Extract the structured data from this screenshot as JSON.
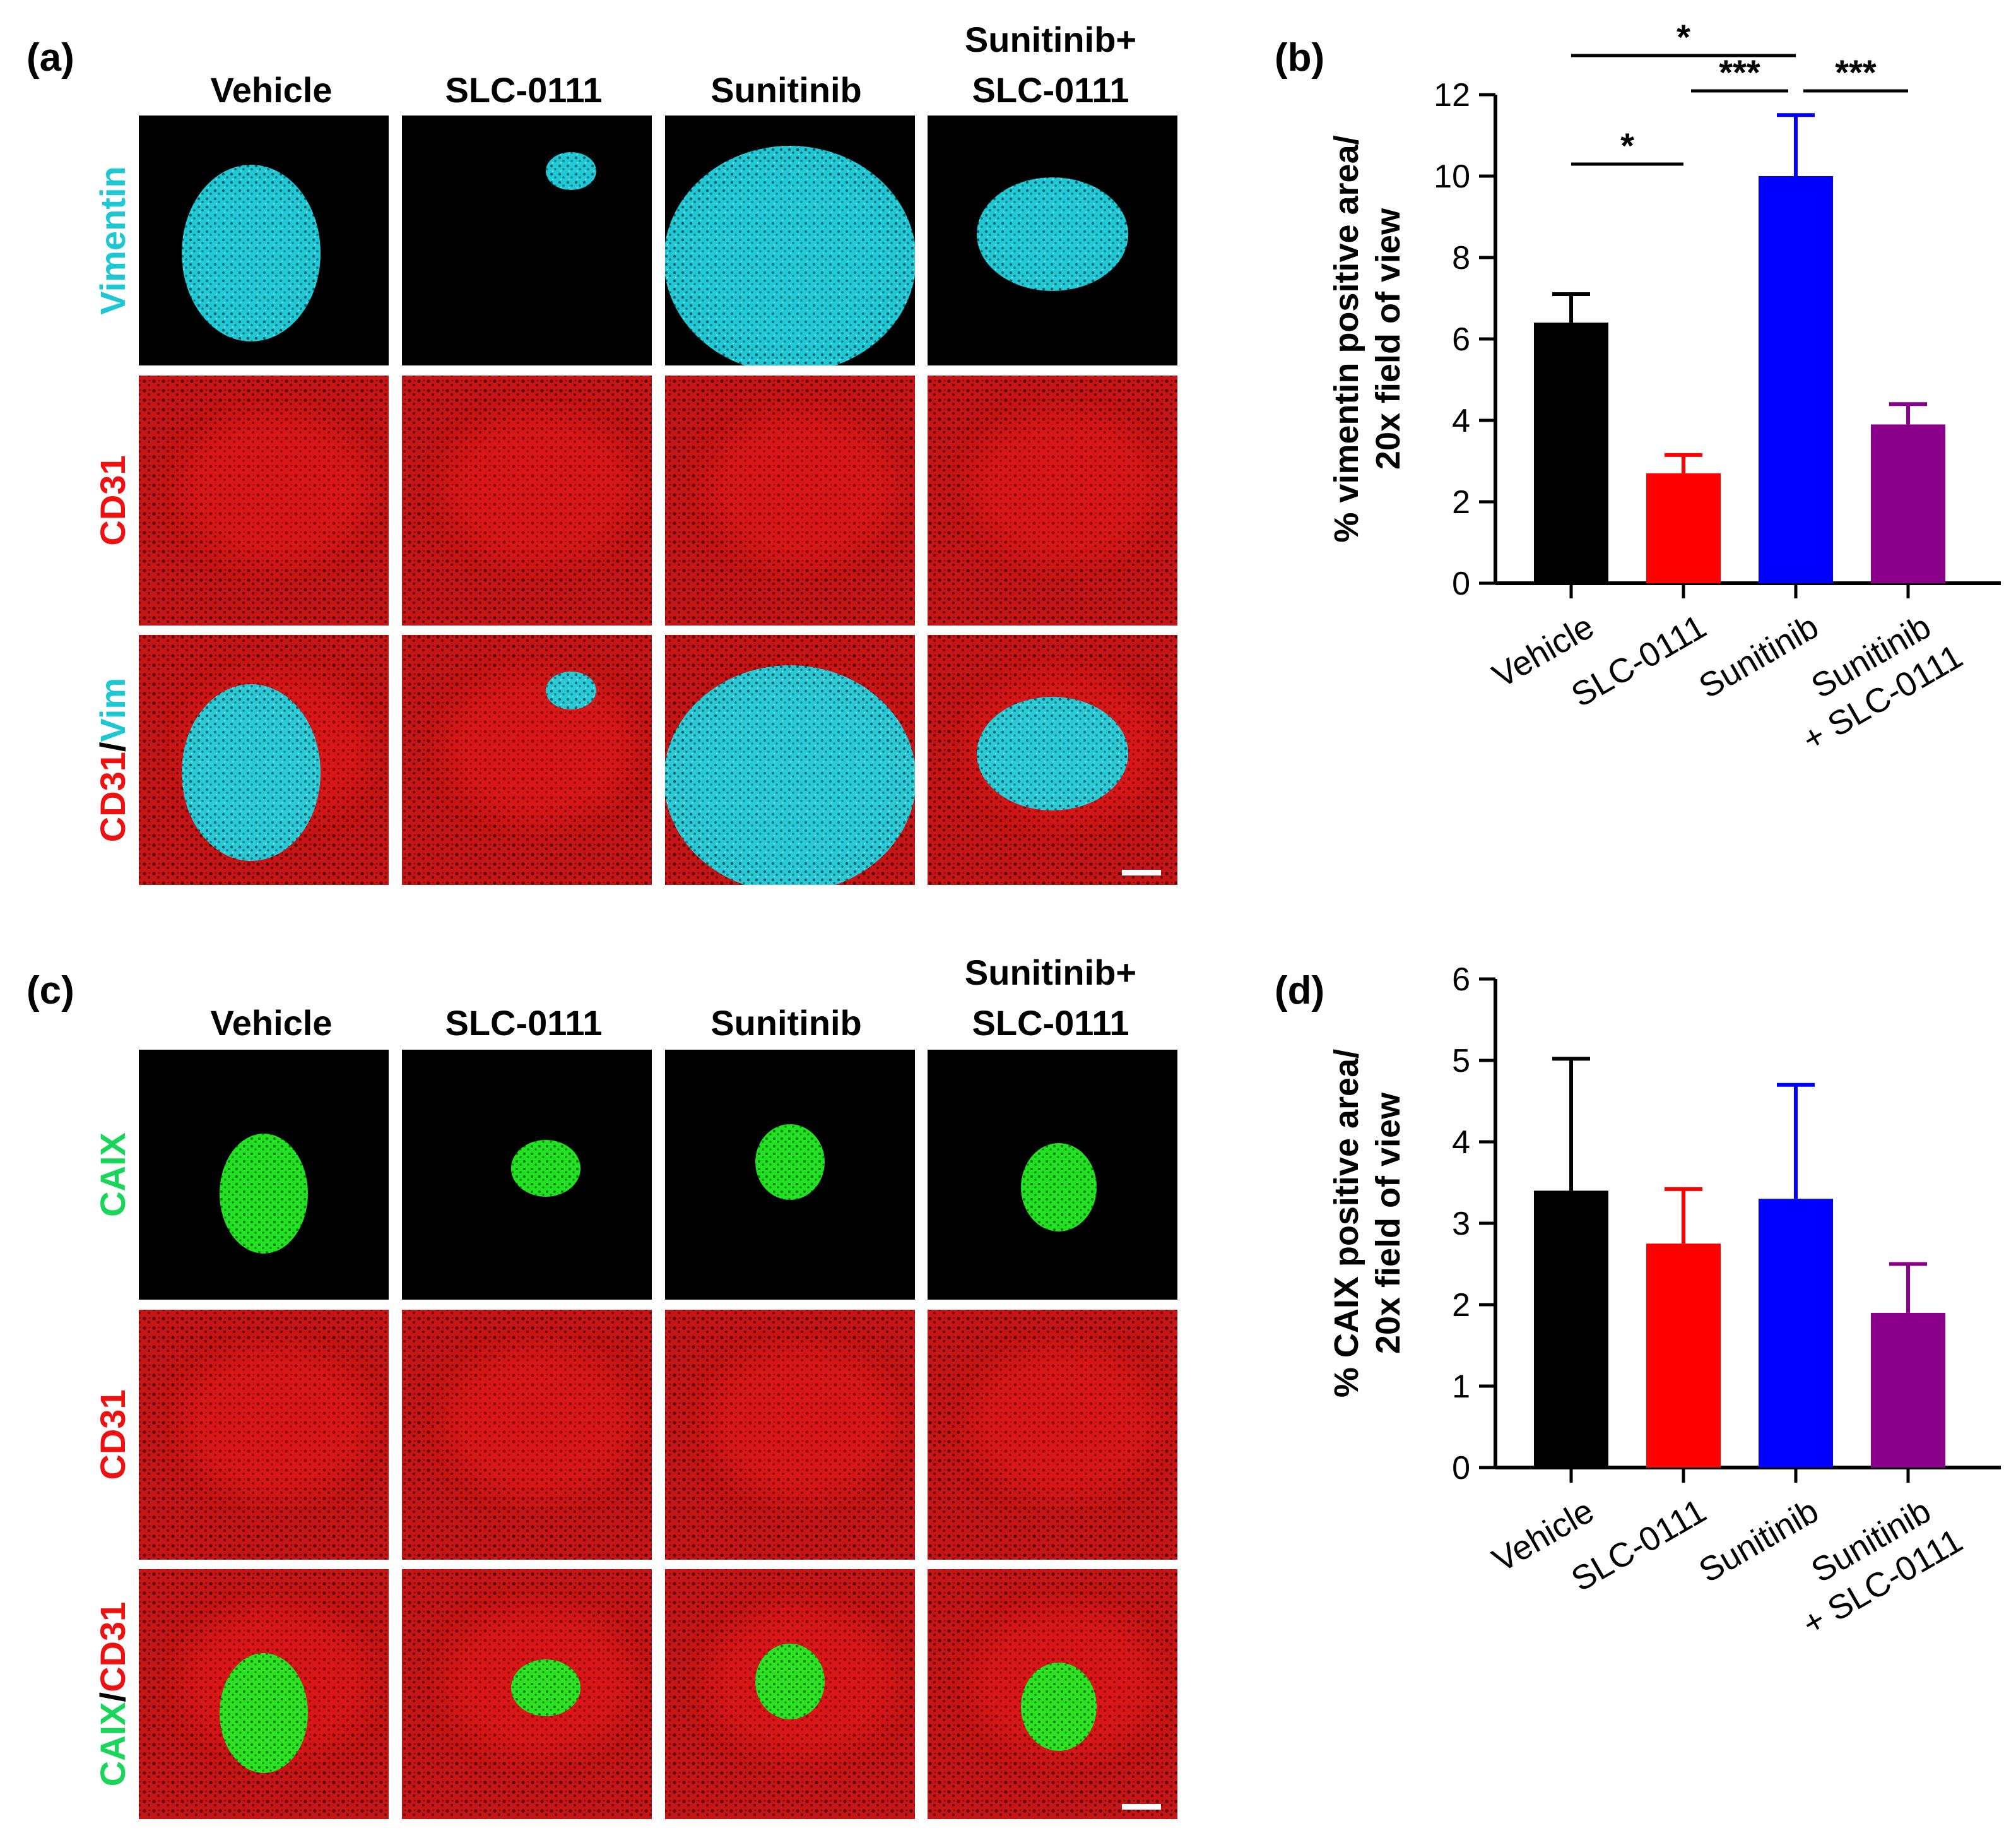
{
  "panels": {
    "a": {
      "letter": "(a)",
      "columns": [
        "Vehicle",
        "SLC-0111",
        "Sunitinib",
        [
          "Sunitinib+",
          "SLC-0111"
        ]
      ],
      "row_labels": [
        [
          {
            "text": "Vimentin",
            "color": "#1fc7d4"
          }
        ],
        [
          {
            "text": "CD31",
            "color": "#ee1111"
          }
        ],
        [
          {
            "text": "CD31",
            "color": "#ee1111"
          },
          {
            "text": "/",
            "color": "#000000"
          },
          {
            "text": "Vim",
            "color": "#1fc7d4"
          }
        ]
      ],
      "stain_colors": [
        "#22d3e0",
        "#ff1a1a"
      ]
    },
    "c": {
      "letter": "(c)",
      "columns": [
        "Vehicle",
        "SLC-0111",
        "Sunitinib",
        [
          "Sunitinib+",
          "SLC-0111"
        ]
      ],
      "row_labels": [
        [
          {
            "text": "CAIX",
            "color": "#19d65a"
          }
        ],
        [
          {
            "text": "CD31",
            "color": "#ee1111"
          }
        ],
        [
          {
            "text": "CAIX",
            "color": "#19d65a"
          },
          {
            "text": "/",
            "color": "#000000"
          },
          {
            "text": "CD31",
            "color": "#ee1111"
          }
        ]
      ],
      "stain_colors": [
        "#22ee22",
        "#ff1a1a"
      ]
    }
  },
  "chart_data": [
    {
      "panel": "(b)",
      "type": "bar",
      "categories": [
        "Vehicle",
        "SLC-0111",
        "Sunitinib",
        [
          "Sunitinib",
          "+ SLC-0111"
        ]
      ],
      "values": [
        6.4,
        2.7,
        10.0,
        3.9
      ],
      "errors": [
        0.7,
        0.45,
        1.5,
        0.5
      ],
      "colors": [
        "#000000",
        "#ff0000",
        "#0000ff",
        "#8b008b"
      ],
      "ylabel": [
        "% vimentin positive area/",
        "20x field of view"
      ],
      "ylim": [
        0,
        12
      ],
      "yticks": [
        0,
        2,
        4,
        6,
        8,
        10,
        12
      ],
      "significance": [
        {
          "from": 0,
          "to": 2,
          "label": "*"
        },
        {
          "from": 0,
          "to": 1,
          "label": "*"
        },
        {
          "from": 1,
          "to": 2,
          "label": "***"
        },
        {
          "from": 2,
          "to": 3,
          "label": "***"
        }
      ]
    },
    {
      "panel": "(d)",
      "type": "bar",
      "categories": [
        "Vehicle",
        "SLC-0111",
        "Sunitinib",
        [
          "Sunitinib",
          "+ SLC-0111"
        ]
      ],
      "values": [
        3.4,
        2.75,
        3.3,
        1.9
      ],
      "errors": [
        1.62,
        0.67,
        1.4,
        0.6
      ],
      "colors": [
        "#000000",
        "#ff0000",
        "#0000ff",
        "#8b008b"
      ],
      "ylabel": [
        "% CAIX positive area/",
        "20x field of view"
      ],
      "ylim": [
        0,
        6
      ],
      "yticks": [
        0,
        1,
        2,
        3,
        4,
        5,
        6
      ],
      "significance": []
    }
  ]
}
